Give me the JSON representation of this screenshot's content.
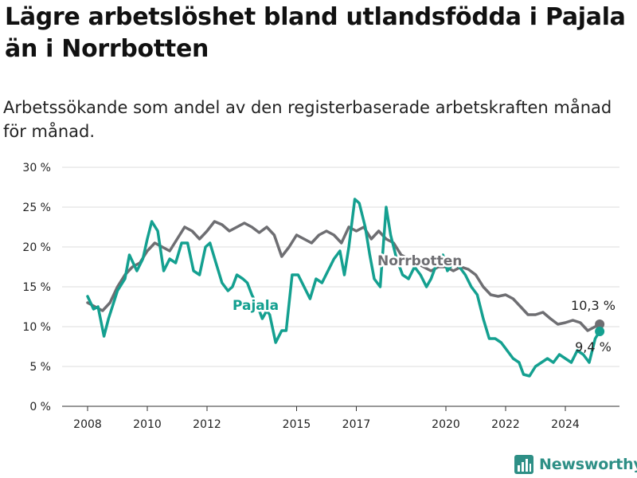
{
  "title": "Lägre arbetslöshet bland utlandsfödda i Pajala än i Norrbotten",
  "subtitle": "Arbetssökande som andel av den registerbaserade arbetskraften månad för månad.",
  "brand": "Newsworthy",
  "colors": {
    "pajala": "#14a090",
    "norrbotten": "#6e6e72",
    "grid": "#dcdcdc",
    "brand": "#2e8f86"
  },
  "chart_data": {
    "type": "line",
    "ylim": [
      0,
      30
    ],
    "xlim": [
      2008.0,
      2025.0
    ],
    "y_ticks": [
      0,
      5,
      10,
      15,
      20,
      25,
      30
    ],
    "y_tick_labels": [
      "0 %",
      "5 %",
      "10 %",
      "15 %",
      "20 %",
      "25 %",
      "30 %"
    ],
    "x_ticks": [
      2008,
      2010,
      2012,
      2015,
      2017,
      2020,
      2022,
      2024
    ],
    "x_tick_labels": [
      "2008",
      "2010",
      "2012",
      "2015",
      "2017",
      "2020",
      "2022",
      "2024"
    ],
    "grid": "horizontal",
    "series": [
      {
        "name": "Norrbotten",
        "end_label": "10,3 %",
        "points": [
          [
            2008.0,
            13.0
          ],
          [
            2008.25,
            12.5
          ],
          [
            2008.5,
            12.0
          ],
          [
            2008.75,
            13.0
          ],
          [
            2009.0,
            15.0
          ],
          [
            2009.25,
            16.5
          ],
          [
            2009.5,
            17.5
          ],
          [
            2009.75,
            18.0
          ],
          [
            2010.0,
            19.5
          ],
          [
            2010.25,
            20.5
          ],
          [
            2010.5,
            20.0
          ],
          [
            2010.75,
            19.5
          ],
          [
            2011.0,
            21.0
          ],
          [
            2011.25,
            22.5
          ],
          [
            2011.5,
            22.0
          ],
          [
            2011.75,
            21.0
          ],
          [
            2012.0,
            22.0
          ],
          [
            2012.25,
            23.2
          ],
          [
            2012.5,
            22.8
          ],
          [
            2012.75,
            22.0
          ],
          [
            2013.0,
            22.5
          ],
          [
            2013.25,
            23.0
          ],
          [
            2013.5,
            22.5
          ],
          [
            2013.75,
            21.8
          ],
          [
            2014.0,
            22.5
          ],
          [
            2014.25,
            21.5
          ],
          [
            2014.5,
            18.8
          ],
          [
            2014.75,
            20.0
          ],
          [
            2015.0,
            21.5
          ],
          [
            2015.25,
            21.0
          ],
          [
            2015.5,
            20.5
          ],
          [
            2015.75,
            21.5
          ],
          [
            2016.0,
            22.0
          ],
          [
            2016.25,
            21.5
          ],
          [
            2016.5,
            20.5
          ],
          [
            2016.75,
            22.5
          ],
          [
            2017.0,
            22.0
          ],
          [
            2017.25,
            22.5
          ],
          [
            2017.5,
            21.0
          ],
          [
            2017.75,
            22.0
          ],
          [
            2018.0,
            21.0
          ],
          [
            2018.25,
            20.5
          ],
          [
            2018.5,
            19.0
          ],
          [
            2018.75,
            18.5
          ],
          [
            2019.0,
            18.0
          ],
          [
            2019.25,
            17.5
          ],
          [
            2019.5,
            17.0
          ],
          [
            2019.75,
            17.5
          ],
          [
            2020.0,
            17.5
          ],
          [
            2020.25,
            17.0
          ],
          [
            2020.5,
            17.5
          ],
          [
            2020.75,
            17.2
          ],
          [
            2021.0,
            16.5
          ],
          [
            2021.25,
            15.0
          ],
          [
            2021.5,
            14.0
          ],
          [
            2021.75,
            13.8
          ],
          [
            2022.0,
            14.0
          ],
          [
            2022.25,
            13.5
          ],
          [
            2022.5,
            12.5
          ],
          [
            2022.75,
            11.5
          ],
          [
            2023.0,
            11.5
          ],
          [
            2023.25,
            11.8
          ],
          [
            2023.5,
            11.0
          ],
          [
            2023.75,
            10.3
          ],
          [
            2024.0,
            10.5
          ],
          [
            2024.25,
            10.8
          ],
          [
            2024.5,
            10.5
          ],
          [
            2024.75,
            9.5
          ],
          [
            2025.0,
            10.0
          ],
          [
            2025.15,
            10.3
          ]
        ]
      },
      {
        "name": "Pajala",
        "end_label": "9,4 %",
        "points": [
          [
            2008.0,
            13.8
          ],
          [
            2008.2,
            12.2
          ],
          [
            2008.35,
            12.5
          ],
          [
            2008.55,
            8.8
          ],
          [
            2008.7,
            11.0
          ],
          [
            2009.0,
            14.5
          ],
          [
            2009.25,
            16.0
          ],
          [
            2009.4,
            19.0
          ],
          [
            2009.65,
            17.0
          ],
          [
            2009.85,
            18.5
          ],
          [
            2010.0,
            21.0
          ],
          [
            2010.15,
            23.2
          ],
          [
            2010.35,
            22.0
          ],
          [
            2010.55,
            17.0
          ],
          [
            2010.75,
            18.5
          ],
          [
            2010.95,
            18.0
          ],
          [
            2011.15,
            20.5
          ],
          [
            2011.35,
            20.5
          ],
          [
            2011.55,
            17.0
          ],
          [
            2011.75,
            16.5
          ],
          [
            2011.95,
            20.0
          ],
          [
            2012.1,
            20.5
          ],
          [
            2012.3,
            18.0
          ],
          [
            2012.5,
            15.5
          ],
          [
            2012.7,
            14.5
          ],
          [
            2012.85,
            15.0
          ],
          [
            2013.0,
            16.5
          ],
          [
            2013.2,
            16.0
          ],
          [
            2013.35,
            15.5
          ],
          [
            2013.5,
            14.0
          ],
          [
            2013.7,
            12.5
          ],
          [
            2013.85,
            11.0
          ],
          [
            2014.0,
            12.0
          ],
          [
            2014.1,
            11.5
          ],
          [
            2014.3,
            8.0
          ],
          [
            2014.5,
            9.5
          ],
          [
            2014.65,
            9.5
          ],
          [
            2014.85,
            16.5
          ],
          [
            2015.05,
            16.5
          ],
          [
            2015.25,
            15.0
          ],
          [
            2015.45,
            13.5
          ],
          [
            2015.65,
            16.0
          ],
          [
            2015.85,
            15.5
          ],
          [
            2016.05,
            17.0
          ],
          [
            2016.25,
            18.5
          ],
          [
            2016.45,
            19.5
          ],
          [
            2016.6,
            16.5
          ],
          [
            2016.75,
            20.0
          ],
          [
            2016.95,
            26.0
          ],
          [
            2017.1,
            25.5
          ],
          [
            2017.3,
            22.5
          ],
          [
            2017.45,
            19.0
          ],
          [
            2017.6,
            16.0
          ],
          [
            2017.8,
            15.0
          ],
          [
            2018.0,
            25.0
          ],
          [
            2018.15,
            21.5
          ],
          [
            2018.35,
            18.5
          ],
          [
            2018.55,
            16.5
          ],
          [
            2018.75,
            16.0
          ],
          [
            2018.95,
            17.5
          ],
          [
            2019.15,
            16.5
          ],
          [
            2019.35,
            15.0
          ],
          [
            2019.5,
            16.0
          ],
          [
            2019.7,
            18.0
          ],
          [
            2019.9,
            19.0
          ],
          [
            2020.05,
            17.0
          ],
          [
            2020.25,
            18.0
          ],
          [
            2020.45,
            17.5
          ],
          [
            2020.65,
            16.5
          ],
          [
            2020.85,
            15.0
          ],
          [
            2021.05,
            14.0
          ],
          [
            2021.25,
            11.0
          ],
          [
            2021.45,
            8.5
          ],
          [
            2021.65,
            8.5
          ],
          [
            2021.85,
            8.0
          ],
          [
            2022.05,
            7.0
          ],
          [
            2022.25,
            6.0
          ],
          [
            2022.45,
            5.5
          ],
          [
            2022.6,
            4.0
          ],
          [
            2022.8,
            3.8
          ],
          [
            2023.0,
            5.0
          ],
          [
            2023.2,
            5.5
          ],
          [
            2023.4,
            6.0
          ],
          [
            2023.6,
            5.5
          ],
          [
            2023.8,
            6.5
          ],
          [
            2024.0,
            6.0
          ],
          [
            2024.2,
            5.5
          ],
          [
            2024.4,
            7.0
          ],
          [
            2024.6,
            6.5
          ],
          [
            2024.8,
            5.5
          ],
          [
            2025.0,
            8.5
          ],
          [
            2025.15,
            9.4
          ]
        ]
      }
    ]
  }
}
